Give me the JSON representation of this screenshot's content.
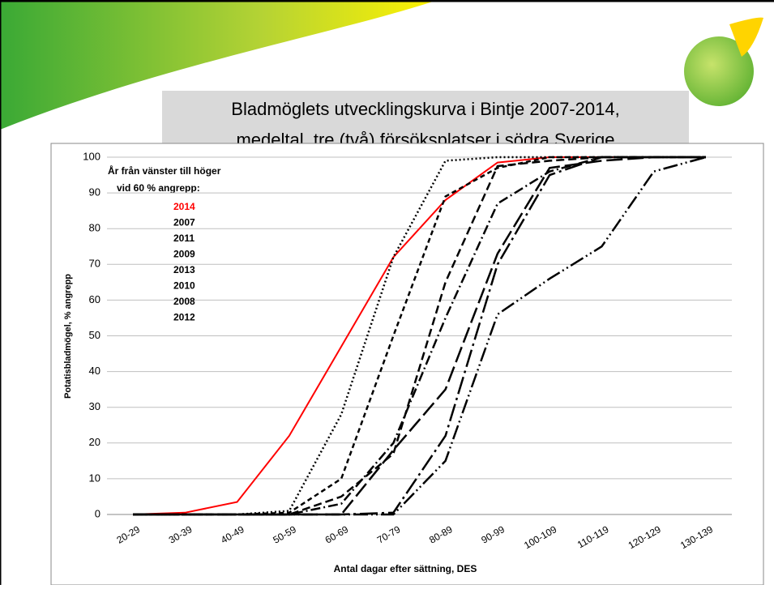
{
  "chart_data": {
    "type": "line",
    "title": [
      "Bladmöglets utvecklingskurva i Bintje 2007-2014,",
      "medeltal, tre (två) försöksplatser i södra Sverige"
    ],
    "legend_title": [
      "År från vänster till höger",
      "vid 60 % angrepp:"
    ],
    "x_label": "Antal dagar efter sättning, DES",
    "y_label": "Potatisbladmögel, % angrepp",
    "categories": [
      "20-29",
      "30-39",
      "40-49",
      "50-59",
      "60-69",
      "70-79",
      "80-89",
      "90-99",
      "100-109",
      "110-119",
      "120-129",
      "130-139"
    ],
    "series": [
      {
        "name": "2014",
        "color": "#ff0000",
        "values": [
          0,
          0.5,
          3.5,
          22,
          47,
          72,
          88,
          98.5,
          100,
          100,
          100,
          100
        ]
      },
      {
        "name": "2007",
        "color": "#000000",
        "values": [
          0,
          0,
          0,
          1,
          28,
          72,
          99,
          100,
          100,
          100,
          100,
          100
        ]
      },
      {
        "name": "2011",
        "color": "#000000",
        "values": [
          0,
          0,
          0,
          0.5,
          10,
          50,
          89,
          97,
          100,
          100,
          100,
          100
        ]
      },
      {
        "name": "2009",
        "color": "#000000",
        "values": [
          0,
          0,
          0,
          0,
          5,
          17,
          65,
          97.5,
          99,
          100,
          100,
          100
        ]
      },
      {
        "name": "2013",
        "color": "#000000",
        "values": [
          0,
          0,
          0,
          0,
          3,
          20,
          55,
          87,
          96,
          100,
          100,
          100
        ]
      },
      {
        "name": "2010",
        "color": "#000000",
        "values": [
          0,
          0,
          0,
          0,
          0,
          18,
          35,
          73,
          97,
          99,
          100,
          100
        ]
      },
      {
        "name": "2008",
        "color": "#000000",
        "values": [
          0,
          0,
          0,
          0,
          0,
          0.5,
          22,
          70,
          95,
          100,
          100,
          100
        ]
      },
      {
        "name": "2012",
        "color": "#000000",
        "values": [
          0,
          0,
          0,
          0,
          0,
          0,
          15,
          56,
          66,
          75,
          96,
          100
        ]
      }
    ],
    "ylim": [
      0,
      100
    ],
    "yticks": [
      0,
      10,
      20,
      30,
      40,
      50,
      60,
      70,
      80,
      90,
      100
    ],
    "grid": true
  }
}
